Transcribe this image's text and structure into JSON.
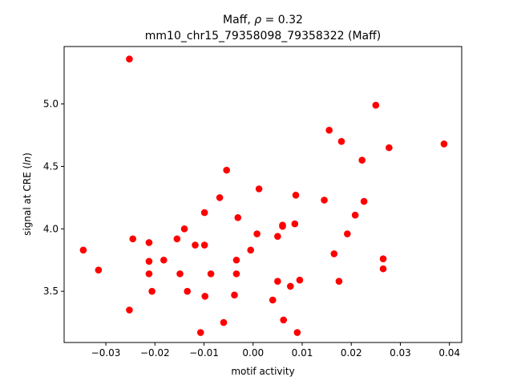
{
  "chart_data": {
    "type": "scatter",
    "title_line1": "Maff, ρ = 0.32",
    "title_line2": "mm10_chr15_79358098_79358322 (Maff)",
    "xlabel": "motif activity",
    "ylabel": "signal at CRE (ln)",
    "xlim": [
      -0.0385,
      0.0425
    ],
    "ylim": [
      3.09,
      5.46
    ],
    "xticks": [
      -0.03,
      -0.02,
      -0.01,
      0.0,
      0.01,
      0.02,
      0.03,
      0.04
    ],
    "xtick_labels": [
      "−0.03",
      "−0.02",
      "−0.01",
      "0.00",
      "0.01",
      "0.02",
      "0.03",
      "0.04"
    ],
    "yticks": [
      3.5,
      4.0,
      4.5,
      5.0
    ],
    "ytick_labels": [
      "3.5",
      "4.0",
      "4.5",
      "5.0"
    ],
    "grid": false,
    "marker_color": "#ff0000",
    "points": [
      {
        "x": -0.0346,
        "y": 3.83
      },
      {
        "x": -0.0315,
        "y": 3.67
      },
      {
        "x": -0.0252,
        "y": 5.36
      },
      {
        "x": -0.0252,
        "y": 3.35
      },
      {
        "x": -0.0245,
        "y": 3.92
      },
      {
        "x": -0.0212,
        "y": 3.89
      },
      {
        "x": -0.0212,
        "y": 3.74
      },
      {
        "x": -0.0212,
        "y": 3.64
      },
      {
        "x": -0.0206,
        "y": 3.5
      },
      {
        "x": -0.0182,
        "y": 3.75
      },
      {
        "x": -0.0155,
        "y": 3.92
      },
      {
        "x": -0.0149,
        "y": 3.64
      },
      {
        "x": -0.014,
        "y": 4.0
      },
      {
        "x": -0.0134,
        "y": 3.5
      },
      {
        "x": -0.0118,
        "y": 3.87
      },
      {
        "x": -0.0107,
        "y": 3.17
      },
      {
        "x": -0.0099,
        "y": 4.13
      },
      {
        "x": -0.0099,
        "y": 3.87
      },
      {
        "x": -0.0098,
        "y": 3.46
      },
      {
        "x": -0.0086,
        "y": 3.64
      },
      {
        "x": -0.0068,
        "y": 4.25
      },
      {
        "x": -0.006,
        "y": 3.25
      },
      {
        "x": -0.0054,
        "y": 4.47
      },
      {
        "x": -0.0038,
        "y": 3.47
      },
      {
        "x": -0.0034,
        "y": 3.75
      },
      {
        "x": -0.0034,
        "y": 3.64
      },
      {
        "x": -0.0031,
        "y": 4.09
      },
      {
        "x": -0.0005,
        "y": 3.83
      },
      {
        "x": 0.0008,
        "y": 3.96
      },
      {
        "x": 0.0012,
        "y": 4.32
      },
      {
        "x": 0.004,
        "y": 3.43
      },
      {
        "x": 0.005,
        "y": 3.94
      },
      {
        "x": 0.005,
        "y": 3.58
      },
      {
        "x": 0.006,
        "y": 4.03
      },
      {
        "x": 0.006,
        "y": 4.02
      },
      {
        "x": 0.0062,
        "y": 3.27
      },
      {
        "x": 0.0076,
        "y": 3.54
      },
      {
        "x": 0.0085,
        "y": 4.04
      },
      {
        "x": 0.0087,
        "y": 4.27
      },
      {
        "x": 0.009,
        "y": 3.17
      },
      {
        "x": 0.0095,
        "y": 3.59
      },
      {
        "x": 0.0145,
        "y": 4.23
      },
      {
        "x": 0.0155,
        "y": 4.79
      },
      {
        "x": 0.0165,
        "y": 3.8
      },
      {
        "x": 0.0175,
        "y": 3.58
      },
      {
        "x": 0.018,
        "y": 4.7
      },
      {
        "x": 0.0192,
        "y": 3.96
      },
      {
        "x": 0.0208,
        "y": 4.11
      },
      {
        "x": 0.0222,
        "y": 4.55
      },
      {
        "x": 0.0226,
        "y": 4.22
      },
      {
        "x": 0.025,
        "y": 4.99
      },
      {
        "x": 0.0265,
        "y": 3.76
      },
      {
        "x": 0.0265,
        "y": 3.68
      },
      {
        "x": 0.0277,
        "y": 4.65
      },
      {
        "x": 0.0389,
        "y": 4.68
      }
    ]
  }
}
